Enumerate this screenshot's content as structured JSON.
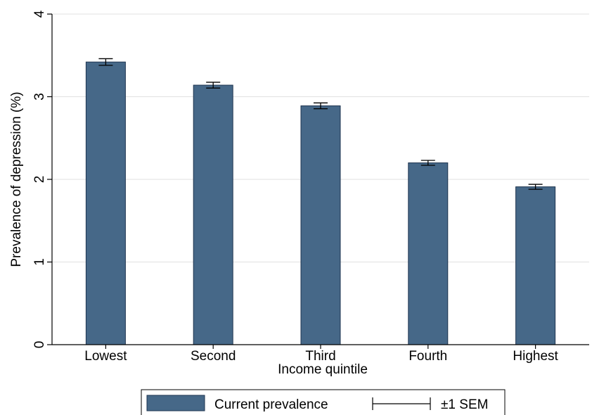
{
  "chart_data": {
    "type": "bar",
    "title": "",
    "xlabel": "Income quintile",
    "ylabel": "Prevalence of depression (%)",
    "categories": [
      "Lowest",
      "Second",
      "Third",
      "Fourth",
      "Highest"
    ],
    "series": [
      {
        "name": "Current prevalence",
        "values": [
          3.42,
          3.14,
          2.89,
          2.2,
          1.91
        ],
        "sem": [
          0.04,
          0.035,
          0.035,
          0.03,
          0.03
        ]
      }
    ],
    "ylim": [
      0,
      4
    ],
    "yticks": [
      "0",
      "1",
      "2",
      "3",
      "4"
    ],
    "grid": true,
    "legend": {
      "position": "bottom",
      "entries": [
        "Current prevalence",
        "±1 SEM"
      ]
    },
    "colors": {
      "bar_fill": "#466888",
      "bar_stroke": "#1f3550",
      "grid": "#e1e1e1",
      "axis": "#000000"
    }
  }
}
